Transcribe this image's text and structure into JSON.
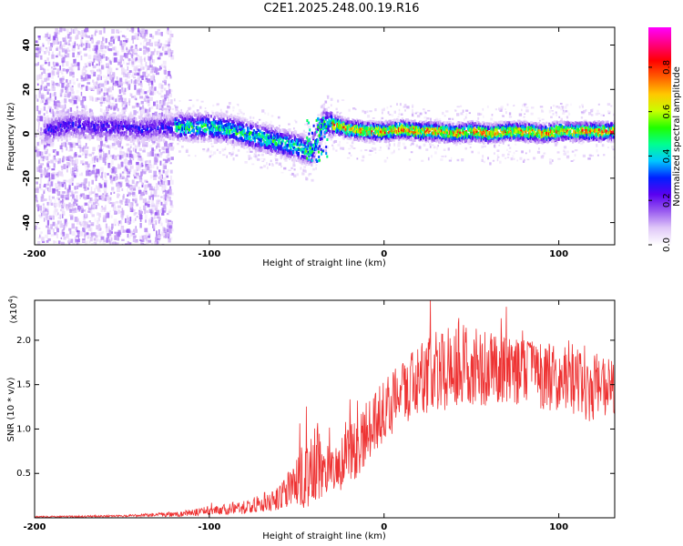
{
  "title": "C2E1.2025.248.00.19.R16",
  "chart_data": [
    {
      "type": "heatmap",
      "name": "spectrogram",
      "xlabel": "Height of straight line (km)",
      "ylabel": "Frequency (Hz)",
      "xlim": [
        -200,
        132
      ],
      "ylim": [
        -50,
        48
      ],
      "xticks": [
        -200,
        -100,
        0,
        100
      ],
      "yticks": [
        -40,
        -20,
        0,
        20,
        40
      ],
      "x_tick_labels": [
        "-200",
        "-100",
        "0",
        "100"
      ],
      "y_tick_labels": [
        "-40",
        "-20",
        "0",
        "20",
        "40"
      ],
      "colorbar": {
        "label": "Normalized spectral amplitude",
        "range": [
          0,
          0.98
        ],
        "ticks": [
          0.0,
          0.2,
          0.4,
          0.6,
          0.8
        ],
        "tick_labels": [
          "0.0",
          "0.2",
          "0.4",
          "0.6",
          "0.8"
        ],
        "colors": [
          "#ffffff",
          "#e0c8f8",
          "#9a5cf0",
          "#5a00f0",
          "#0020ff",
          "#00c8ff",
          "#00ff90",
          "#20ff00",
          "#c8ff00",
          "#ffc800",
          "#ff6000",
          "#ff0000",
          "#ff0080",
          "#ff00ff"
        ]
      },
      "ridge": {
        "x": [
          -195,
          -180,
          -160,
          -140,
          -120,
          -100,
          -90,
          -80,
          -70,
          -60,
          -50,
          -42,
          -35,
          -30,
          -20,
          -10,
          0,
          10,
          20,
          30,
          40,
          50,
          60,
          70,
          80,
          90,
          100,
          110,
          120,
          130
        ],
        "freq": [
          1,
          4,
          3,
          2,
          3,
          3,
          2,
          0,
          -2,
          -4,
          -6,
          -8,
          5,
          4,
          2,
          1,
          1,
          2,
          1,
          1,
          0,
          1,
          0,
          1,
          1,
          0,
          1,
          1,
          1,
          1
        ]
      }
    },
    {
      "type": "line",
      "name": "snr",
      "xlabel": "Height of straight line (km)",
      "ylabel": "SNR (10 * v/v)",
      "multiplier_label": "(x10",
      "multiplier_exp": "4",
      "multiplier_close": ")",
      "xlim": [
        -200,
        132
      ],
      "ylim": [
        0,
        2.45
      ],
      "xticks": [
        -200,
        -100,
        0,
        100
      ],
      "yticks": [
        0.5,
        1.0,
        1.5,
        2.0
      ],
      "x_tick_labels": [
        "-200",
        "-100",
        "0",
        "100"
      ],
      "y_tick_labels": [
        "0.5",
        "1.0",
        "1.5",
        "2.0"
      ],
      "color": "#ee3333",
      "envelope": {
        "x": [
          -200,
          -150,
          -120,
          -100,
          -80,
          -60,
          -45,
          -38,
          -35,
          -30,
          -25,
          -20,
          -10,
          0,
          10,
          20,
          30,
          40,
          50,
          60,
          70,
          80,
          90,
          100,
          110,
          120,
          132
        ],
        "mean": [
          0.01,
          0.02,
          0.04,
          0.08,
          0.12,
          0.22,
          0.45,
          0.6,
          0.55,
          0.55,
          0.6,
          0.7,
          0.95,
          1.2,
          1.4,
          1.55,
          1.65,
          1.72,
          1.7,
          1.68,
          1.65,
          1.62,
          1.6,
          1.6,
          1.55,
          1.5,
          1.45
        ],
        "amp": [
          0.01,
          0.01,
          0.03,
          0.05,
          0.08,
          0.14,
          0.35,
          0.5,
          0.3,
          0.25,
          0.3,
          0.35,
          0.35,
          0.35,
          0.35,
          0.4,
          0.45,
          0.5,
          0.45,
          0.42,
          0.4,
          0.38,
          0.38,
          0.4,
          0.4,
          0.45,
          0.3
        ]
      }
    }
  ]
}
